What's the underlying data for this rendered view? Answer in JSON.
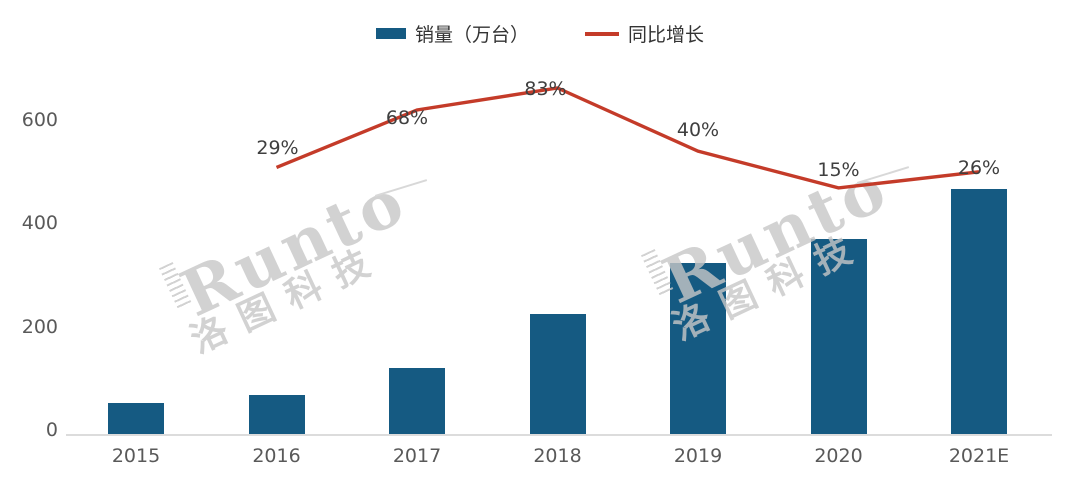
{
  "legend": {
    "bar_label": "销量（万台）",
    "line_label": "同比增长"
  },
  "watermark": {
    "brand": "Runto",
    "cn": "洛图科技"
  },
  "colors": {
    "bar": "#155a82",
    "line": "#c43b29",
    "axis": "#dcdcdc",
    "tick_text": "#595959",
    "label_text": "#3f3f3f",
    "watermark": "#c7c7c7"
  },
  "chart_data": {
    "type": "bar+line-combo",
    "categories": [
      "2015",
      "2016",
      "2017",
      "2018",
      "2019",
      "2020",
      "2021E"
    ],
    "series": [
      {
        "name": "销量（万台）",
        "type": "bar",
        "values": [
          59,
          76,
          127,
          232,
          330,
          376,
          473
        ]
      },
      {
        "name": "同比增长",
        "type": "line",
        "unit": "%",
        "values": [
          null,
          29,
          68,
          83,
          40,
          15,
          26
        ],
        "labels": [
          "",
          "29%",
          "68%",
          "83%",
          "40%",
          "15%",
          "26%"
        ]
      }
    ],
    "yaxis": {
      "ticks": [
        0,
        200,
        400,
        600
      ],
      "min": 0,
      "max": 650,
      "label": ""
    },
    "xlabel": "",
    "ylabel": "",
    "title": "",
    "grid": false,
    "legend_position": "top-center"
  }
}
